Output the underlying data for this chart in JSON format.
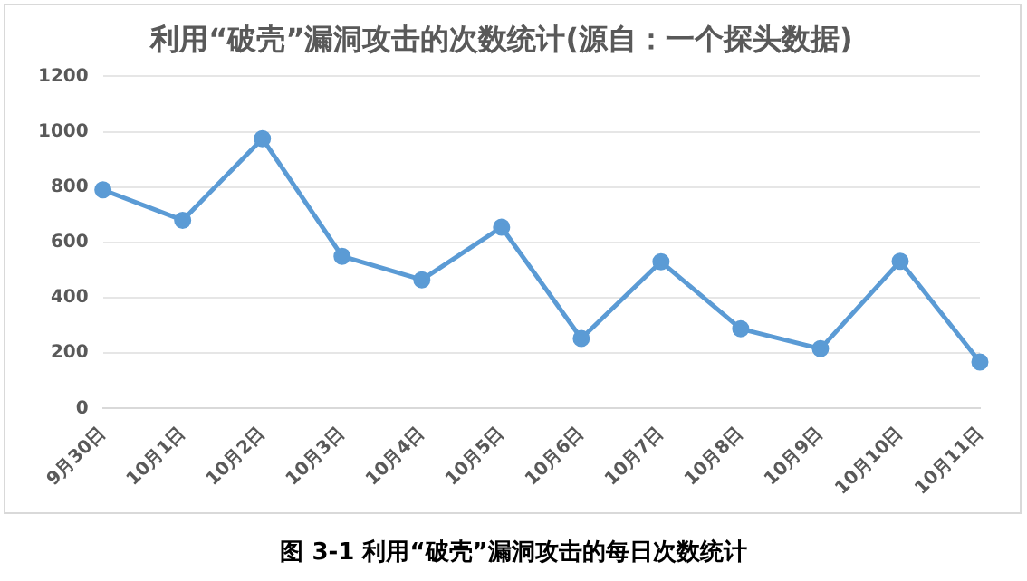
{
  "chart_data": {
    "type": "line",
    "title": "利用“破壳”漏洞攻击的次数统计(源自：一个探头数据)",
    "categories": [
      "9月30日",
      "10月1日",
      "10月2日",
      "10月3日",
      "10月4日",
      "10月5日",
      "10月6日",
      "10月7日",
      "10月8日",
      "10月9日",
      "10月10日",
      "10月11日"
    ],
    "series": [
      {
        "color": "#5b9bd5",
        "values": [
          790,
          680,
          975,
          550,
          465,
          655,
          253,
          530,
          288,
          216,
          532,
          168
        ]
      }
    ],
    "ylim": [
      0,
      1200
    ],
    "yticks": [
      0,
      200,
      400,
      600,
      800,
      1000,
      1200
    ],
    "grid": "y",
    "legend": false,
    "marker": "circle",
    "line_style": "solid",
    "annotations": [
      "图  3-1 利用“破壳”漏洞攻击的每日次数统计"
    ]
  }
}
